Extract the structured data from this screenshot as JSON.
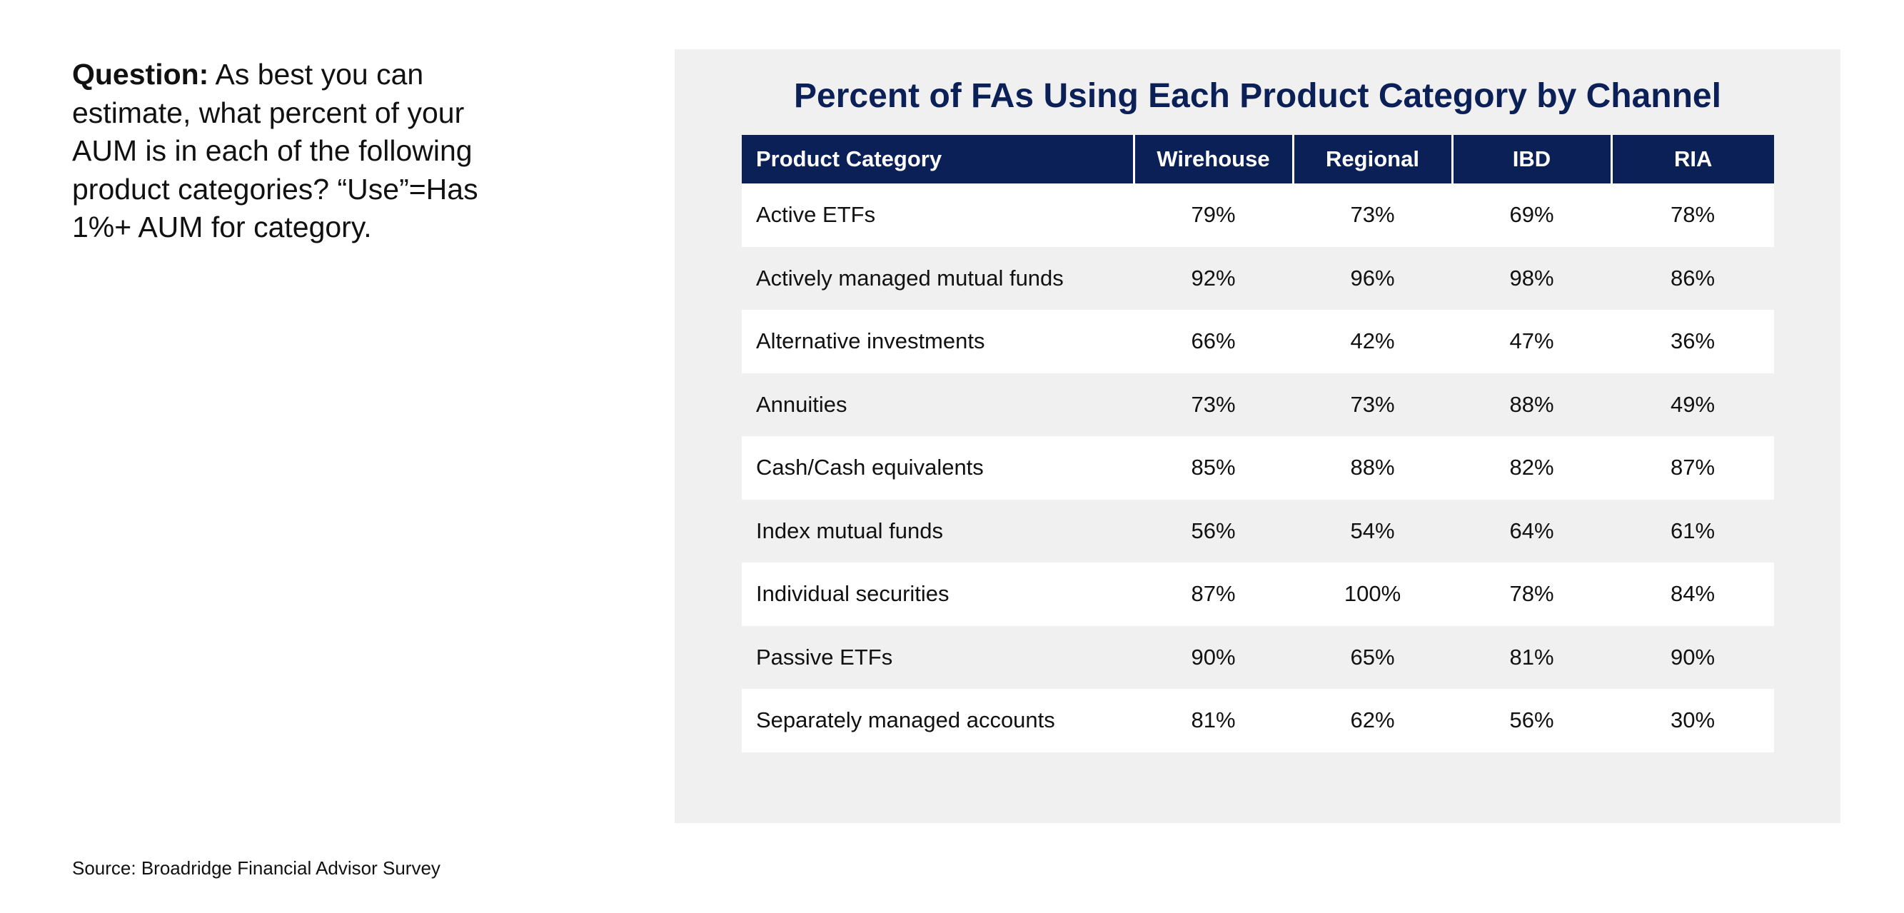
{
  "question": {
    "label": "Question:",
    "text": "As best you can estimate, what percent of your AUM is in each of the following product categories? “Use”=Has 1%+ AUM for category."
  },
  "source": "Source: Broadridge Financial Advisor Survey",
  "colors": {
    "header_navy": "#0c2058",
    "panel_gray": "#f0f0f0",
    "row_white": "#ffffff"
  },
  "chart_data": {
    "type": "table",
    "title": "Percent of FAs Using Each Product Category by Channel",
    "columns": [
      "Product Category",
      "Wirehouse",
      "Regional",
      "IBD",
      "RIA"
    ],
    "rows": [
      {
        "category": "Active ETFs",
        "values": [
          "79%",
          "73%",
          "69%",
          "78%"
        ]
      },
      {
        "category": "Actively managed mutual funds",
        "values": [
          "92%",
          "96%",
          "98%",
          "86%"
        ]
      },
      {
        "category": "Alternative investments",
        "values": [
          "66%",
          "42%",
          "47%",
          "36%"
        ]
      },
      {
        "category": "Annuities",
        "values": [
          "73%",
          "73%",
          "88%",
          "49%"
        ]
      },
      {
        "category": "Cash/Cash equivalents",
        "values": [
          "85%",
          "88%",
          "82%",
          "87%"
        ]
      },
      {
        "category": "Index mutual funds",
        "values": [
          "56%",
          "54%",
          "64%",
          "61%"
        ]
      },
      {
        "category": "Individual securities",
        "values": [
          "87%",
          "100%",
          "78%",
          "84%"
        ]
      },
      {
        "category": "Passive ETFs",
        "values": [
          "90%",
          "65%",
          "81%",
          "90%"
        ]
      },
      {
        "category": "Separately managed accounts",
        "values": [
          "81%",
          "62%",
          "56%",
          "30%"
        ]
      }
    ]
  }
}
